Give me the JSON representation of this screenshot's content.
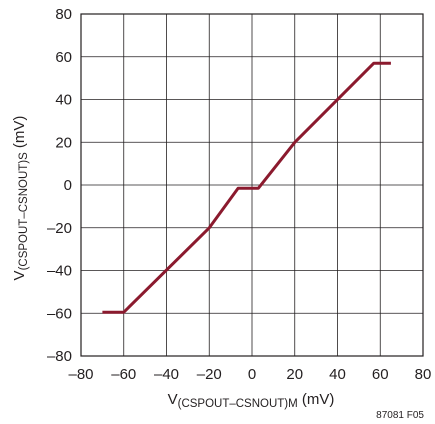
{
  "chart_data": {
    "type": "line",
    "xlabel": {
      "prefix": "V",
      "subscript": "(CSPOUT–CSNOUT)M",
      "unit": " (mV)"
    },
    "ylabel": {
      "prefix": "V",
      "subscript": "(CSPOUT–CSNOUT)S",
      "unit": " (mV)"
    },
    "xlim": [
      -80,
      80
    ],
    "ylim": [
      -80,
      80
    ],
    "x_ticks": [
      -80,
      -60,
      -40,
      -20,
      0,
      20,
      40,
      60,
      80
    ],
    "y_ticks": [
      -80,
      -60,
      -40,
      -20,
      0,
      20,
      40,
      60,
      80
    ],
    "x_tick_labels": [
      "–80",
      "–60",
      "–40",
      "–20",
      "0",
      "20",
      "40",
      "60",
      "80"
    ],
    "y_tick_labels": [
      "–80",
      "–60",
      "–40",
      "–20",
      "0",
      "20",
      "40",
      "60",
      "80"
    ],
    "grid": true,
    "series": [
      {
        "color": "#8b1a2e",
        "points": [
          [
            -70,
            -59.5
          ],
          [
            -60,
            -59.5
          ],
          [
            -20,
            -20
          ],
          [
            -6.5,
            -1.5
          ],
          [
            3,
            -1.5
          ],
          [
            20,
            20
          ],
          [
            57,
            57
          ],
          [
            65,
            57
          ]
        ]
      }
    ],
    "figure_id": "87081 F05"
  }
}
